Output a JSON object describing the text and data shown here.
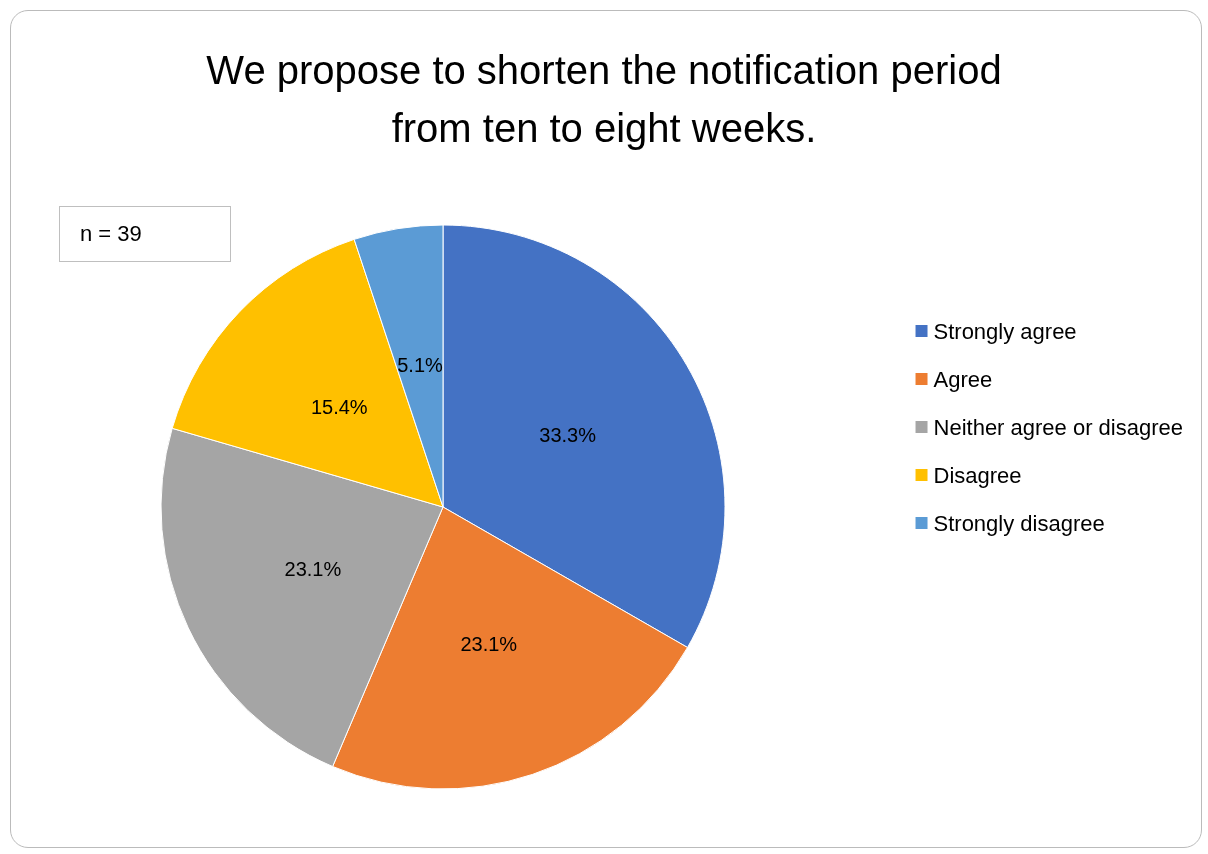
{
  "chart_data": {
    "type": "pie",
    "title": "We propose to shorten the notification period\nfrom ten to eight weeks.",
    "categories": [
      "Strongly agree",
      "Agree",
      "Neither agree or disagree",
      "Disagree",
      "Strongly disagree"
    ],
    "values": [
      33.3,
      23.1,
      23.1,
      15.4,
      5.1
    ],
    "colors": [
      "#4472c4",
      "#ed7d31",
      "#a5a5a5",
      "#ffc000",
      "#5b9bd5"
    ],
    "value_labels": [
      "33.3%",
      "23.1%",
      "23.1%",
      "15.4%",
      "5.1%"
    ],
    "legend": "right",
    "annotations": [
      "n = 39"
    ]
  }
}
